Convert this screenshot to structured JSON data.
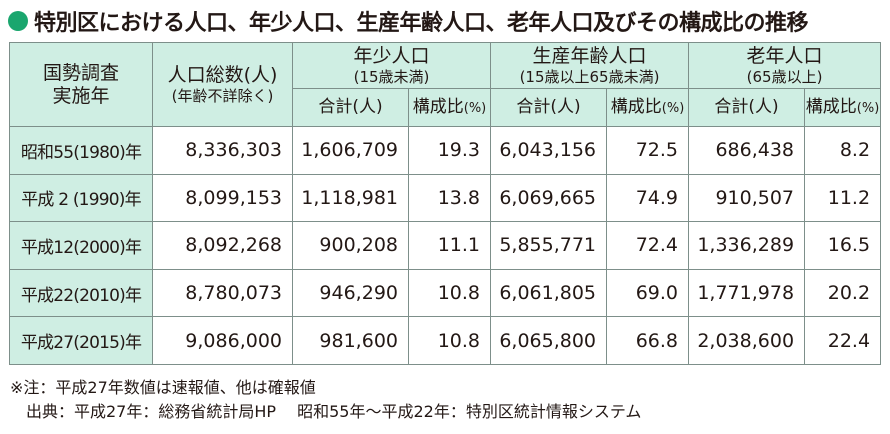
{
  "title": "特別区における人口、年少人口、生産年齢人口、老年人口及びその構成比の推移",
  "header": {
    "year_col": [
      "国勢調査",
      "実施年"
    ],
    "total_col": "人口総数(人)",
    "total_col_note": "(年齢不詳除く)",
    "groups": [
      {
        "label": "年少人口",
        "sub": "(15歳未満)"
      },
      {
        "label": "生産年齢人口",
        "sub": "(15歳以上65歳未満)"
      },
      {
        "label": "老年人口",
        "sub": "(65歳以上)"
      }
    ],
    "sum_label": "合計(人)",
    "ratio_label": "構成比",
    "ratio_unit": "(%)"
  },
  "rows": [
    {
      "year": "昭和55(1980)年",
      "total": "8,336,303",
      "young": "1,606,709",
      "young_pct": "19.3",
      "working": "6,043,156",
      "working_pct": "72.5",
      "old": "686,438",
      "old_pct": "8.2"
    },
    {
      "year": "平成 2 (1990)年",
      "total": "8,099,153",
      "young": "1,118,981",
      "young_pct": "13.8",
      "working": "6,069,665",
      "working_pct": "74.9",
      "old": "910,507",
      "old_pct": "11.2"
    },
    {
      "year": "平成12(2000)年",
      "total": "8,092,268",
      "young": "900,208",
      "young_pct": "11.1",
      "working": "5,855,771",
      "working_pct": "72.4",
      "old": "1,336,289",
      "old_pct": "16.5"
    },
    {
      "year": "平成22(2010)年",
      "total": "8,780,073",
      "young": "946,290",
      "young_pct": "10.8",
      "working": "6,061,805",
      "working_pct": "69.0",
      "old": "1,771,978",
      "old_pct": "20.2"
    },
    {
      "year": "平成27(2015)年",
      "total": "9,086,000",
      "young": "981,600",
      "young_pct": "10.8",
      "working": "6,065,800",
      "working_pct": "66.8",
      "old": "2,038,600",
      "old_pct": "22.4"
    }
  ],
  "notes": [
    "※注：平成27年数値は速報値、他は確報値",
    "　出典：平成27年：総務省統計局HP　 昭和55年～平成22年：特別区統計情報システム"
  ],
  "colors": {
    "accent": "#1aa66e",
    "header_bg": "#cfeee3",
    "border": "#7d8f8a"
  }
}
